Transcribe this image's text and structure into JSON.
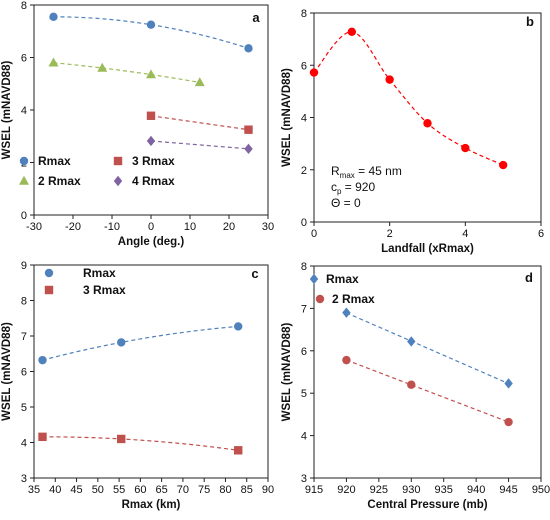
{
  "chart_data": [
    {
      "panel": "a",
      "type": "scatter",
      "xlabel": "Angle (deg.)",
      "ylabel": "WSEL (mNAVD88)",
      "xlim": [
        -30,
        30
      ],
      "ylim": [
        0,
        8
      ],
      "xticks": [
        -30,
        -20,
        -10,
        0,
        10,
        20,
        30
      ],
      "yticks": [
        0,
        2,
        4,
        6,
        8
      ],
      "legend": "bottom-left",
      "series": [
        {
          "name": "Rmax",
          "marker": "circle",
          "color": "#4f81bd",
          "x": [
            -25,
            0,
            25
          ],
          "y": [
            7.55,
            7.25,
            6.35
          ]
        },
        {
          "name": "2 Rmax",
          "marker": "triangle",
          "color": "#9bbb59",
          "x": [
            -25,
            -12.5,
            0,
            12.5
          ],
          "y": [
            5.8,
            5.6,
            5.35,
            5.05
          ]
        },
        {
          "name": "3 Rmax",
          "marker": "square",
          "color": "#c0504d",
          "x": [
            0,
            25
          ],
          "y": [
            3.78,
            3.25
          ]
        },
        {
          "name": "4 Rmax",
          "marker": "diamond",
          "color": "#8064a2",
          "x": [
            0,
            25
          ],
          "y": [
            2.82,
            2.52
          ]
        }
      ]
    },
    {
      "panel": "b",
      "type": "scatter",
      "xlabel": "Landfall (xRmax)",
      "ylabel": "WSEL (mNAVD88)",
      "xlim": [
        0,
        6
      ],
      "ylim": [
        0,
        8
      ],
      "xticks": [
        0,
        2,
        4,
        6
      ],
      "yticks": [
        0,
        2,
        4,
        6,
        8
      ],
      "series": [
        {
          "name": "",
          "marker": "circle",
          "color": "#ff0000",
          "x": [
            0,
            1,
            2,
            3,
            4,
            5
          ],
          "y": [
            5.72,
            7.28,
            5.45,
            3.78,
            2.83,
            2.18
          ]
        }
      ],
      "annotation": {
        "rmax_label": "R",
        "rmax_sub": "max",
        "rmax_value": " = 45 nm",
        "cp_label": "c",
        "cp_sub": "p",
        "cp_value": " = 920",
        "theta": "Θ = 0"
      }
    },
    {
      "panel": "c",
      "type": "scatter",
      "xlabel": "Rmax (km)",
      "ylabel": "WSEL (mNAVD88)",
      "xlim": [
        35,
        90
      ],
      "ylim": [
        3,
        9
      ],
      "xticks": [
        35,
        40,
        45,
        50,
        55,
        60,
        65,
        70,
        75,
        80,
        85,
        90
      ],
      "yticks": [
        3,
        4,
        5,
        6,
        7,
        8,
        9
      ],
      "legend": "top-left",
      "series": [
        {
          "name": "Rmax",
          "marker": "circle",
          "color": "#4f81bd",
          "x": [
            37,
            55.5,
            83
          ],
          "y": [
            6.32,
            6.82,
            7.27
          ]
        },
        {
          "name": "3 Rmax",
          "marker": "square",
          "color": "#c0504d",
          "x": [
            37,
            55.5,
            83
          ],
          "y": [
            4.16,
            4.1,
            3.78
          ]
        }
      ]
    },
    {
      "panel": "d",
      "type": "scatter",
      "xlabel": "Central Pressure (mb)",
      "ylabel": "WSEL (mNAVD88)",
      "xlim": [
        915,
        950
      ],
      "ylim": [
        3,
        8
      ],
      "xticks": [
        915,
        920,
        925,
        930,
        935,
        940,
        945,
        950
      ],
      "yticks": [
        3,
        4,
        5,
        6,
        7,
        8
      ],
      "legend": "top-left",
      "series": [
        {
          "name": "Rmax",
          "marker": "diamond",
          "color": "#4f81bd",
          "x": [
            920,
            930,
            945
          ],
          "y": [
            6.9,
            6.22,
            5.23
          ]
        },
        {
          "name": "2 Rmax",
          "marker": "circle",
          "color": "#c0504d",
          "x": [
            920,
            930,
            945
          ],
          "y": [
            5.78,
            5.2,
            4.32
          ]
        }
      ]
    }
  ]
}
